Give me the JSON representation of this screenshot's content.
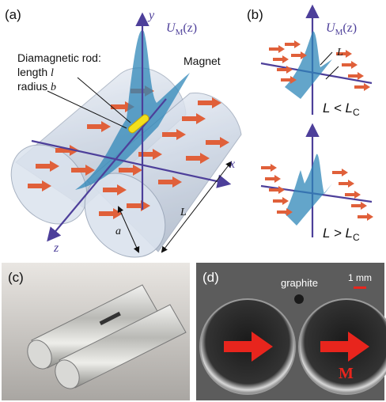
{
  "panel_a": {
    "label": "(a)",
    "axis_y": "y",
    "axis_x": "x",
    "axis_z": "z",
    "potential": {
      "symbol": "U",
      "subscript": "M",
      "argument": "(z)"
    },
    "rod_title": "Diamagnetic rod:",
    "rod_length": {
      "word": "length",
      "var": "l"
    },
    "rod_radius": {
      "word": "radius",
      "var": "b"
    },
    "magnet": "Magnet",
    "radius_label": "a",
    "length_label": "L"
  },
  "panel_b": {
    "label": "(b)",
    "potential": {
      "symbol": "U",
      "subscript": "M",
      "argument": "(z)"
    },
    "length_label": "L",
    "case_short": {
      "left": "L < L",
      "subscript": "C"
    },
    "case_long": {
      "left": "L > L",
      "subscript": "C"
    }
  },
  "panel_c": {
    "label": "(c)"
  },
  "panel_d": {
    "label": "(d)",
    "graphite": "graphite",
    "scale": "1 mm",
    "magnetization": "M"
  }
}
